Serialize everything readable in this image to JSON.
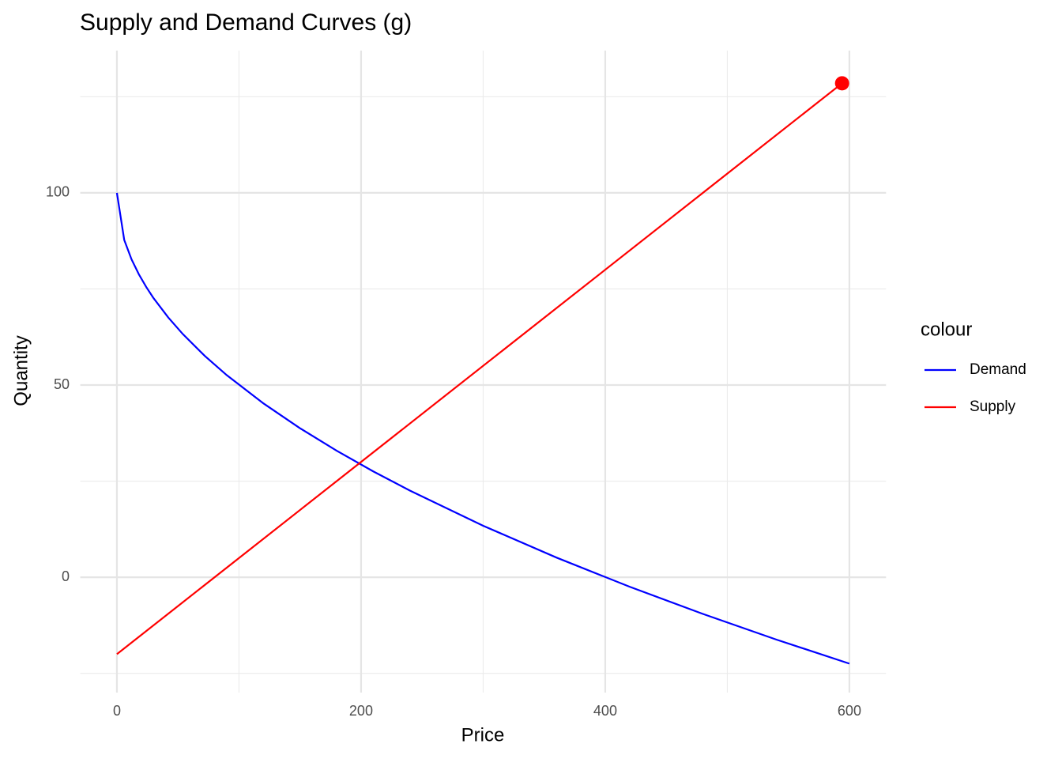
{
  "chart_data": {
    "type": "line",
    "title": "Supply and Demand Curves (g)",
    "x_label": "Price",
    "y_label": "Quantity",
    "series": [
      {
        "name": "Demand",
        "color": "#0000ff",
        "x": [
          0,
          6,
          12,
          18,
          24,
          30,
          42,
          54,
          72,
          90,
          120,
          150,
          180,
          210,
          240,
          300,
          360,
          420,
          480,
          540,
          600
        ],
        "values": [
          100,
          87.75,
          82.68,
          78.79,
          75.51,
          72.61,
          67.6,
          63.26,
          57.57,
          52.57,
          45.23,
          38.76,
          32.92,
          27.54,
          22.54,
          13.4,
          5.13,
          -2.47,
          -9.54,
          -16.19,
          -22.47
        ]
      },
      {
        "name": "Supply",
        "color": "#ff0000",
        "x": [
          0,
          594
        ],
        "values": [
          -20,
          128.5
        ]
      }
    ],
    "point": {
      "x": 594,
      "y": 128.5,
      "color": "#ff0000"
    },
    "xlim": [
      -30,
      630
    ],
    "ylim": [
      -30,
      137
    ],
    "xticks": [
      0,
      200,
      400,
      600
    ],
    "yticks": [
      0,
      50,
      100
    ],
    "x_minor_grid": [
      100,
      300,
      500
    ],
    "y_minor_grid": [
      -25,
      25,
      75,
      125
    ],
    "grid": true,
    "legend": {
      "title": "colour",
      "position": "right"
    }
  }
}
